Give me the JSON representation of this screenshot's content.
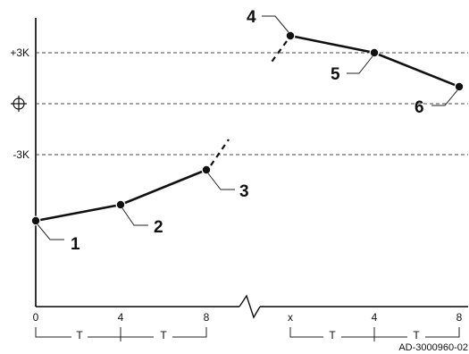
{
  "y_axis_labels": {
    "plus": "+3K",
    "zero_icon": "target-crosshair-icon",
    "minus": "-3K"
  },
  "x_axis_left": {
    "ticks": [
      "0",
      "4",
      "8"
    ],
    "periods": [
      "T",
      "T"
    ]
  },
  "x_axis_right": {
    "ticks": [
      "x",
      "4",
      "8"
    ],
    "periods": [
      "T",
      "T"
    ]
  },
  "points": [
    {
      "label": "1"
    },
    {
      "label": "2"
    },
    {
      "label": "3"
    },
    {
      "label": "4"
    },
    {
      "label": "5"
    },
    {
      "label": "6"
    }
  ],
  "reference": "AD-3000960-02",
  "colors": {
    "line": "#111111",
    "grid": "#444444",
    "background": "#ffffff"
  }
}
